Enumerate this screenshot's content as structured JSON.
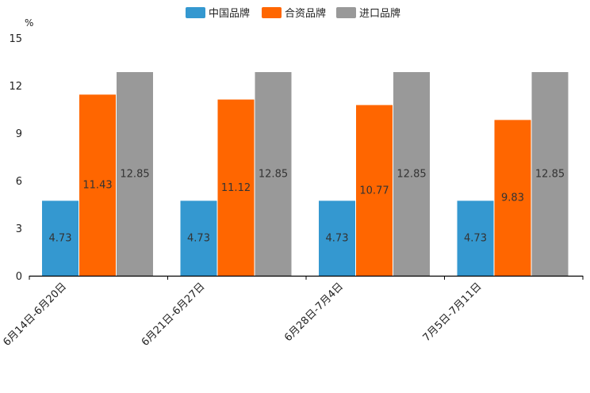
{
  "chart_data": {
    "type": "bar",
    "title": "",
    "ylabel": "%",
    "xlabel": "",
    "ylim": [
      0,
      15
    ],
    "yticks": [
      "0",
      "3",
      "6",
      "9",
      "12",
      "15"
    ],
    "legend_position": "top-center",
    "categories": [
      "6月14日-6月20日",
      "6月21日-6月27日",
      "6月28日-7月4日",
      "7月5日-7月11日"
    ],
    "series": [
      {
        "name": "中国品牌",
        "color": "#3498d0",
        "values": [
          4.73,
          4.73,
          4.73,
          4.73
        ],
        "labels": [
          "4.73",
          "4.73",
          "4.73",
          "4.73"
        ]
      },
      {
        "name": "合资品牌",
        "color": "#ff6600",
        "values": [
          11.43,
          11.12,
          10.77,
          9.83
        ],
        "labels": [
          "11.43",
          "11.12",
          "10.77",
          "9.83"
        ]
      },
      {
        "name": "进口品牌",
        "color": "#999999",
        "values": [
          12.85,
          12.85,
          12.85,
          12.85
        ],
        "labels": [
          "12.85",
          "12.85",
          "12.85",
          "12.85"
        ]
      }
    ]
  }
}
